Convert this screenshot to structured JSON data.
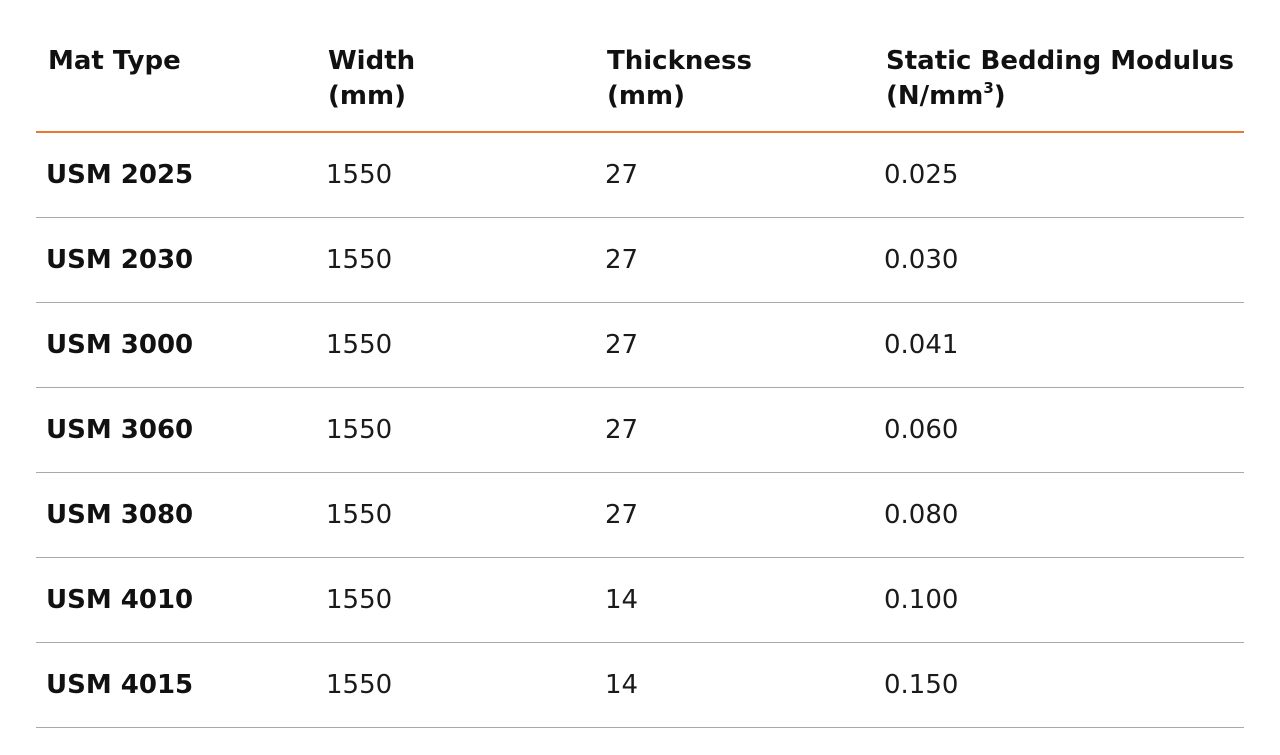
{
  "table": {
    "headers": [
      {
        "line1": "Mat Type",
        "line2": "",
        "unit_sup": ""
      },
      {
        "line1": "Width",
        "line2": "(mm)",
        "unit_sup": ""
      },
      {
        "line1": "Thickness",
        "line2": "(mm)",
        "unit_sup": ""
      },
      {
        "line1": "Static Bedding Modulus",
        "line2": "(N/mm",
        "unit_sup": "3",
        "line2_end": ")"
      }
    ],
    "rows": [
      {
        "mat_type": "USM 2025",
        "width": "1550",
        "thickness": "27",
        "modulus": "0.025"
      },
      {
        "mat_type": "USM 2030",
        "width": "1550",
        "thickness": "27",
        "modulus": "0.030"
      },
      {
        "mat_type": "USM 3000",
        "width": "1550",
        "thickness": "27",
        "modulus": "0.041"
      },
      {
        "mat_type": "USM 3060",
        "width": "1550",
        "thickness": "27",
        "modulus": "0.060"
      },
      {
        "mat_type": "USM 3080",
        "width": "1550",
        "thickness": "27",
        "modulus": "0.080"
      },
      {
        "mat_type": "USM 4010",
        "width": "1550",
        "thickness": "14",
        "modulus": "0.100"
      },
      {
        "mat_type": "USM 4015",
        "width": "1550",
        "thickness": "14",
        "modulus": "0.150"
      }
    ]
  },
  "colors": {
    "header_rule": "#e8792e",
    "row_rule": "#a8a8a8"
  }
}
